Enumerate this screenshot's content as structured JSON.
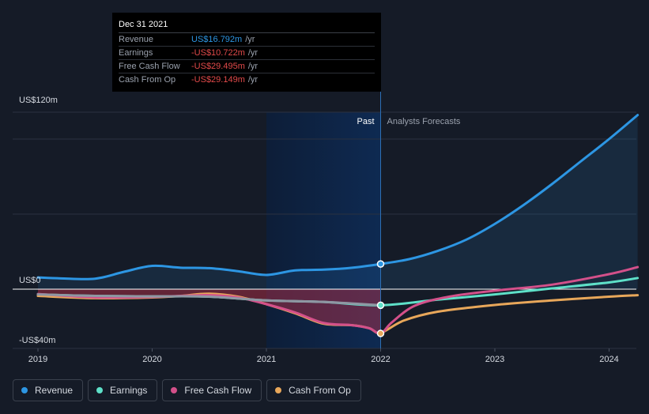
{
  "chart_data": {
    "type": "line",
    "title": "",
    "xlabel": "",
    "ylabel": "",
    "ylim": [
      -40,
      120
    ],
    "y_tick_labels": [
      "US$120m",
      "US$0",
      "-US$40m"
    ],
    "x_tick_labels": [
      "2019",
      "2020",
      "2021",
      "2022",
      "2023",
      "2024"
    ],
    "past_label": "Past",
    "forecast_label": "Analysts Forecasts",
    "series": [
      {
        "name": "Revenue",
        "color": "#2d96e3",
        "points": [
          [
            2019.0,
            7.8
          ],
          [
            2019.2,
            7.2
          ],
          [
            2019.5,
            7.0
          ],
          [
            2019.75,
            11.5
          ],
          [
            2020.0,
            15.5
          ],
          [
            2020.25,
            14.3
          ],
          [
            2020.5,
            14.0
          ],
          [
            2020.75,
            12.0
          ],
          [
            2021.0,
            9.5
          ],
          [
            2021.25,
            12.5
          ],
          [
            2021.5,
            13.0
          ],
          [
            2021.75,
            14.3
          ],
          [
            2022.0,
            16.8
          ],
          [
            2022.25,
            20
          ],
          [
            2022.5,
            25.5
          ],
          [
            2022.75,
            33
          ],
          [
            2023.0,
            43.5
          ],
          [
            2023.25,
            56
          ],
          [
            2023.5,
            70
          ],
          [
            2023.75,
            85
          ],
          [
            2024.0,
            100
          ],
          [
            2024.25,
            116
          ]
        ]
      },
      {
        "name": "Earnings",
        "color": "#5ee0c8",
        "points": [
          [
            2019.0,
            -3.5
          ],
          [
            2019.5,
            -4.5
          ],
          [
            2020.0,
            -4.8
          ],
          [
            2020.5,
            -5.0
          ],
          [
            2021.0,
            -7.5
          ],
          [
            2021.5,
            -8.5
          ],
          [
            2022.0,
            -10.7
          ],
          [
            2022.5,
            -7.0
          ],
          [
            2023.0,
            -3.5
          ],
          [
            2023.5,
            0.5
          ],
          [
            2024.0,
            4.5
          ],
          [
            2024.25,
            7.4
          ]
        ]
      },
      {
        "name": "Free Cash Flow",
        "color": "#d3508a",
        "points": [
          [
            2019.0,
            -3.2
          ],
          [
            2019.5,
            -5.5
          ],
          [
            2020.0,
            -5.2
          ],
          [
            2020.25,
            -4.5
          ],
          [
            2020.5,
            -4.0
          ],
          [
            2020.75,
            -5.5
          ],
          [
            2021.0,
            -10
          ],
          [
            2021.25,
            -15.5
          ],
          [
            2021.5,
            -22.5
          ],
          [
            2021.75,
            -24
          ],
          [
            2021.9,
            -26
          ],
          [
            2022.0,
            -29.5
          ],
          [
            2022.1,
            -22
          ],
          [
            2022.3,
            -11
          ],
          [
            2022.6,
            -5
          ],
          [
            2023.0,
            -1
          ],
          [
            2023.5,
            3.0
          ],
          [
            2024.0,
            10
          ],
          [
            2024.25,
            14.7
          ]
        ]
      },
      {
        "name": "Cash From Op",
        "color": "#e8a75a",
        "points": [
          [
            2019.0,
            -4.5
          ],
          [
            2019.5,
            -6.0
          ],
          [
            2020.0,
            -5.5
          ],
          [
            2020.25,
            -4.5
          ],
          [
            2020.5,
            -3.0
          ],
          [
            2020.75,
            -5.0
          ],
          [
            2021.0,
            -10
          ],
          [
            2021.25,
            -16
          ],
          [
            2021.5,
            -23
          ],
          [
            2021.75,
            -24
          ],
          [
            2021.9,
            -26
          ],
          [
            2022.0,
            -29.1
          ],
          [
            2022.2,
            -21
          ],
          [
            2022.5,
            -15
          ],
          [
            2023.0,
            -10.5
          ],
          [
            2023.5,
            -7.5
          ],
          [
            2024.0,
            -5.0
          ],
          [
            2024.25,
            -4.0
          ]
        ]
      }
    ],
    "highlight": {
      "x": 2022.0,
      "label": "Dec 31 2021",
      "values": [
        {
          "name": "Revenue",
          "value": "US$16.792m",
          "unit": "/yr",
          "color": "#2d96e3"
        },
        {
          "name": "Earnings",
          "value": "-US$10.722m",
          "unit": "/yr",
          "color": "#e24a4a"
        },
        {
          "name": "Free Cash Flow",
          "value": "-US$29.495m",
          "unit": "/yr",
          "color": "#e24a4a"
        },
        {
          "name": "Cash From Op",
          "value": "-US$29.149m",
          "unit": "/yr",
          "color": "#e24a4a"
        }
      ]
    },
    "past_shade_start": 2021.0,
    "legend": [
      "Revenue",
      "Earnings",
      "Free Cash Flow",
      "Cash From Op"
    ]
  }
}
